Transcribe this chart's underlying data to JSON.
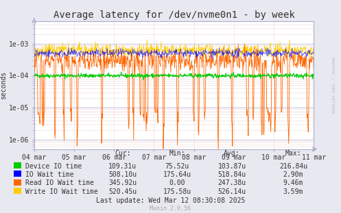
{
  "title": "Average latency for /dev/nvme0n1 - by week",
  "ylabel": "seconds",
  "right_label": "RRDTOOL / TOBI OETIKER",
  "xlabel_dates": [
    "04 mar",
    "05 mar",
    "06 mar",
    "07 mar",
    "08 mar",
    "09 mar",
    "10 mar",
    "11 mar"
  ],
  "background_color": "#e8e8f0",
  "plot_background": "#ffffff",
  "grid_color_major": "#aaaacc",
  "grid_color_minor": "#ddaaaa",
  "legend": [
    {
      "label": "Device IO time",
      "color": "#00cc00"
    },
    {
      "label": "IO Wait time",
      "color": "#0000ff"
    },
    {
      "label": "Read IO Wait time",
      "color": "#ff6600"
    },
    {
      "label": "Write IO Wait time",
      "color": "#ffcc00"
    }
  ],
  "col_headers": [
    "Cur:",
    "Min:",
    "Avg:",
    "Max:"
  ],
  "legend_vals": [
    [
      "109.31u",
      "75.52u",
      "103.87u",
      "216.84u"
    ],
    [
      "508.10u",
      "175.64u",
      "518.84u",
      "2.90m"
    ],
    [
      "345.92u",
      "0.00",
      "247.38u",
      "9.46m"
    ],
    [
      "520.45u",
      "175.58u",
      "526.14u",
      "3.59m"
    ]
  ],
  "footer": "Last update: Wed Mar 12 08:30:08 2025",
  "munin_version": "Munin 2.0.56",
  "num_points": 672,
  "title_fontsize": 10,
  "axis_fontsize": 7,
  "legend_fontsize": 7
}
